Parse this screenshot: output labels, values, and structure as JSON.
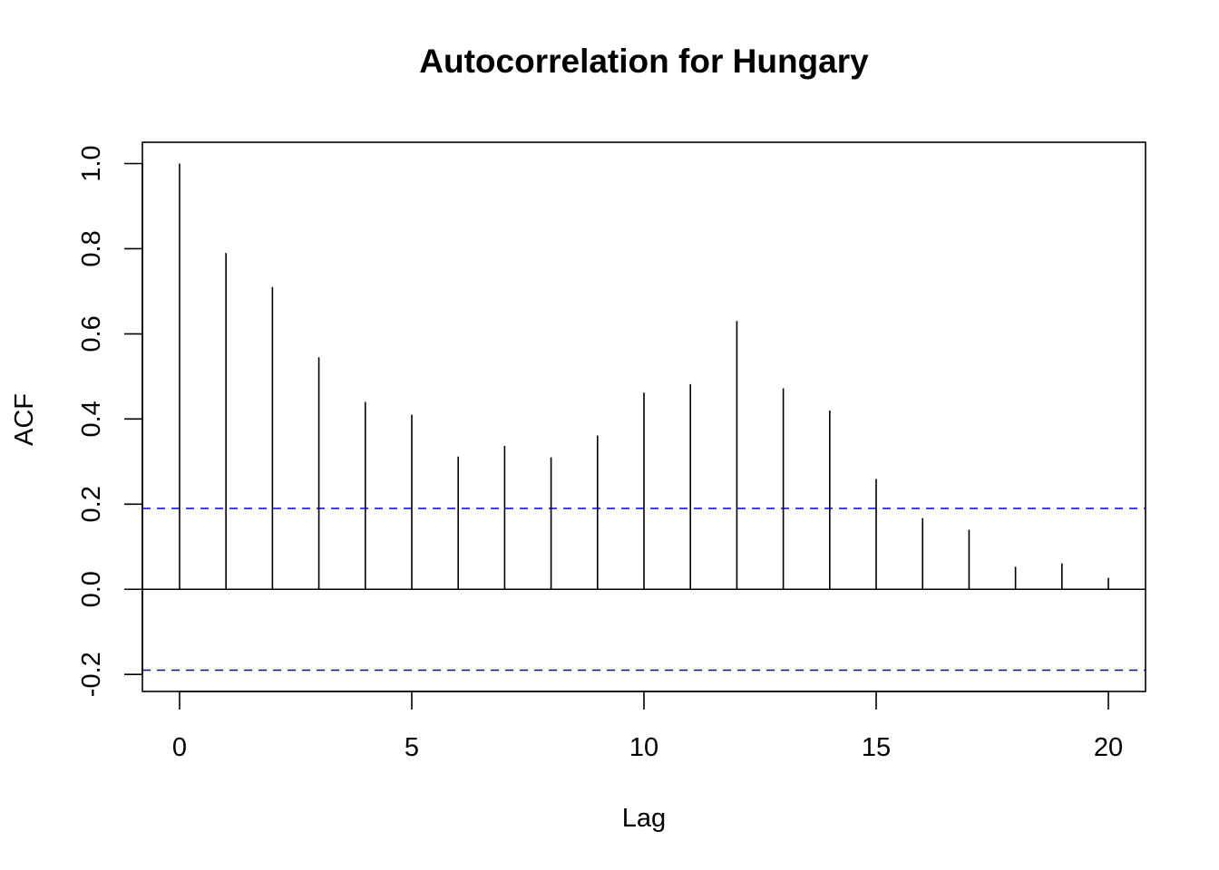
{
  "chart_data": {
    "type": "bar",
    "title": "Autocorrelation for Hungary",
    "xlabel": "Lag",
    "ylabel": "ACF",
    "xlim": [
      -0.8,
      20.8
    ],
    "ylim": [
      -0.24,
      1.05
    ],
    "x_ticks": [
      0,
      5,
      10,
      15,
      20
    ],
    "x_tick_labels": [
      "0",
      "5",
      "10",
      "15",
      "20"
    ],
    "y_ticks": [
      -0.2,
      0.0,
      0.2,
      0.4,
      0.6,
      0.8,
      1.0
    ],
    "y_tick_labels": [
      "-0.2",
      "0.0",
      "0.2",
      "0.4",
      "0.6",
      "0.8",
      "1.0"
    ],
    "lags": [
      0,
      1,
      2,
      3,
      4,
      5,
      6,
      7,
      8,
      9,
      10,
      11,
      12,
      13,
      14,
      15,
      16,
      17,
      18,
      19,
      20
    ],
    "values": [
      1.0,
      0.79,
      0.71,
      0.545,
      0.44,
      0.41,
      0.312,
      0.337,
      0.31,
      0.361,
      0.462,
      0.482,
      0.63,
      0.472,
      0.42,
      0.259,
      0.167,
      0.14,
      0.053,
      0.061,
      0.027
    ],
    "confidence_bound": 0.19,
    "grid": false,
    "colors": {
      "bars": "#000000",
      "confidence_lines": "#0000ee",
      "zero_line": "#000000",
      "frame": "#000000"
    }
  }
}
